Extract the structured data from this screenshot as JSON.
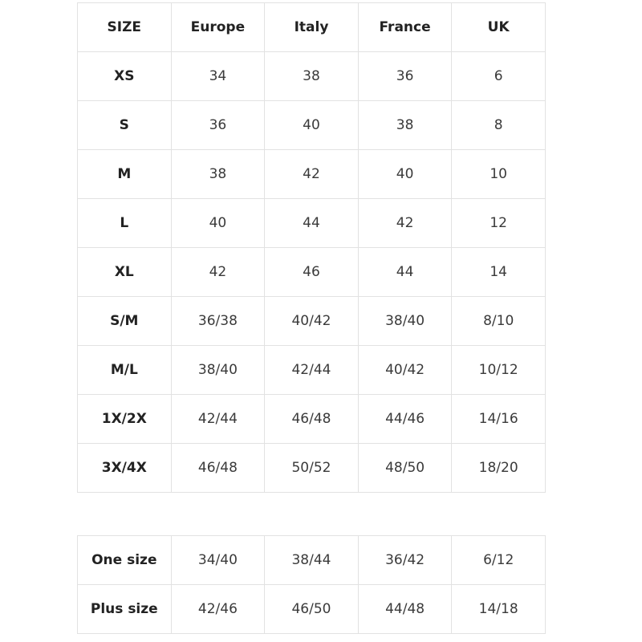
{
  "size_chart": {
    "headers": [
      "SIZE",
      "Europe",
      "Italy",
      "France",
      "UK"
    ],
    "rows": [
      [
        "XS",
        "34",
        "38",
        "36",
        "6"
      ],
      [
        "S",
        "36",
        "40",
        "38",
        "8"
      ],
      [
        "M",
        "38",
        "42",
        "40",
        "10"
      ],
      [
        "L",
        "40",
        "44",
        "42",
        "12"
      ],
      [
        "XL",
        "42",
        "46",
        "44",
        "14"
      ],
      [
        "S/M",
        "36/38",
        "40/42",
        "38/40",
        "8/10"
      ],
      [
        "M/L",
        "38/40",
        "42/44",
        "40/42",
        "10/12"
      ],
      [
        "1X/2X",
        "42/44",
        "46/48",
        "44/46",
        "14/16"
      ],
      [
        "3X/4X",
        "46/48",
        "50/52",
        "48/50",
        "18/20"
      ]
    ]
  },
  "special_sizes": {
    "rows": [
      [
        "One size",
        "34/40",
        "38/44",
        "36/42",
        "6/12"
      ],
      [
        "Plus size",
        "42/46",
        "46/50",
        "44/48",
        "14/18"
      ]
    ]
  }
}
